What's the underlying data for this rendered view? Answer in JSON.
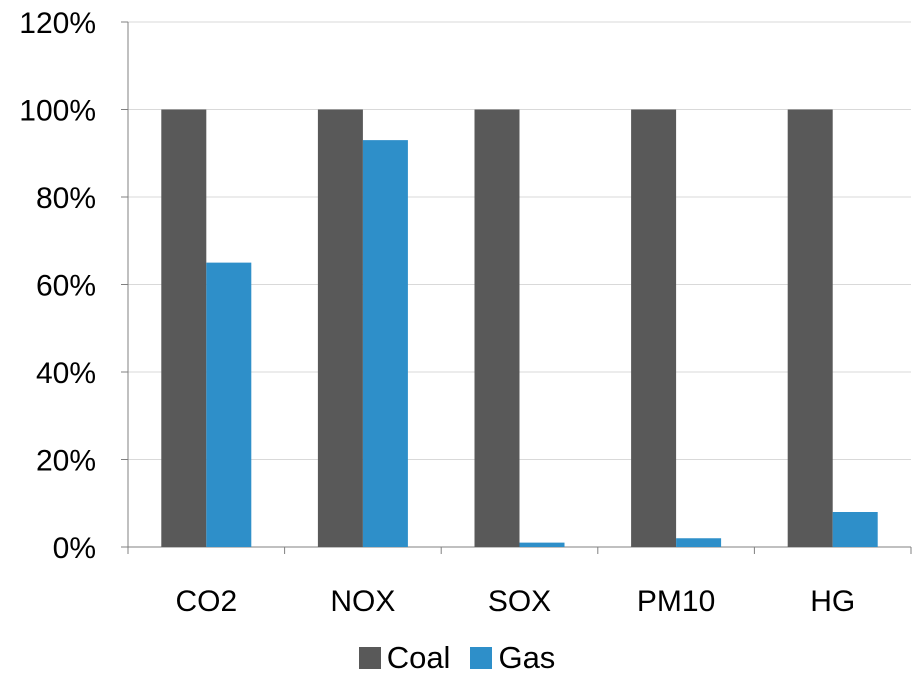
{
  "chart_data": {
    "type": "bar",
    "categories": [
      "CO2",
      "NOX",
      "SOX",
      "PM10",
      "HG"
    ],
    "series": [
      {
        "name": "Coal",
        "values": [
          100,
          100,
          100,
          100,
          100
        ],
        "color": "#595959"
      },
      {
        "name": "Gas",
        "values": [
          65,
          93,
          1,
          2,
          8
        ],
        "color": "#2e8fc9"
      }
    ],
    "ylim": [
      0,
      120
    ],
    "yticks": [
      "0%",
      "20%",
      "40%",
      "60%",
      "80%",
      "100%",
      "120%"
    ],
    "ytick_values": [
      0,
      20,
      40,
      60,
      80,
      100,
      120
    ],
    "grid": true,
    "legend_position": "bottom"
  }
}
